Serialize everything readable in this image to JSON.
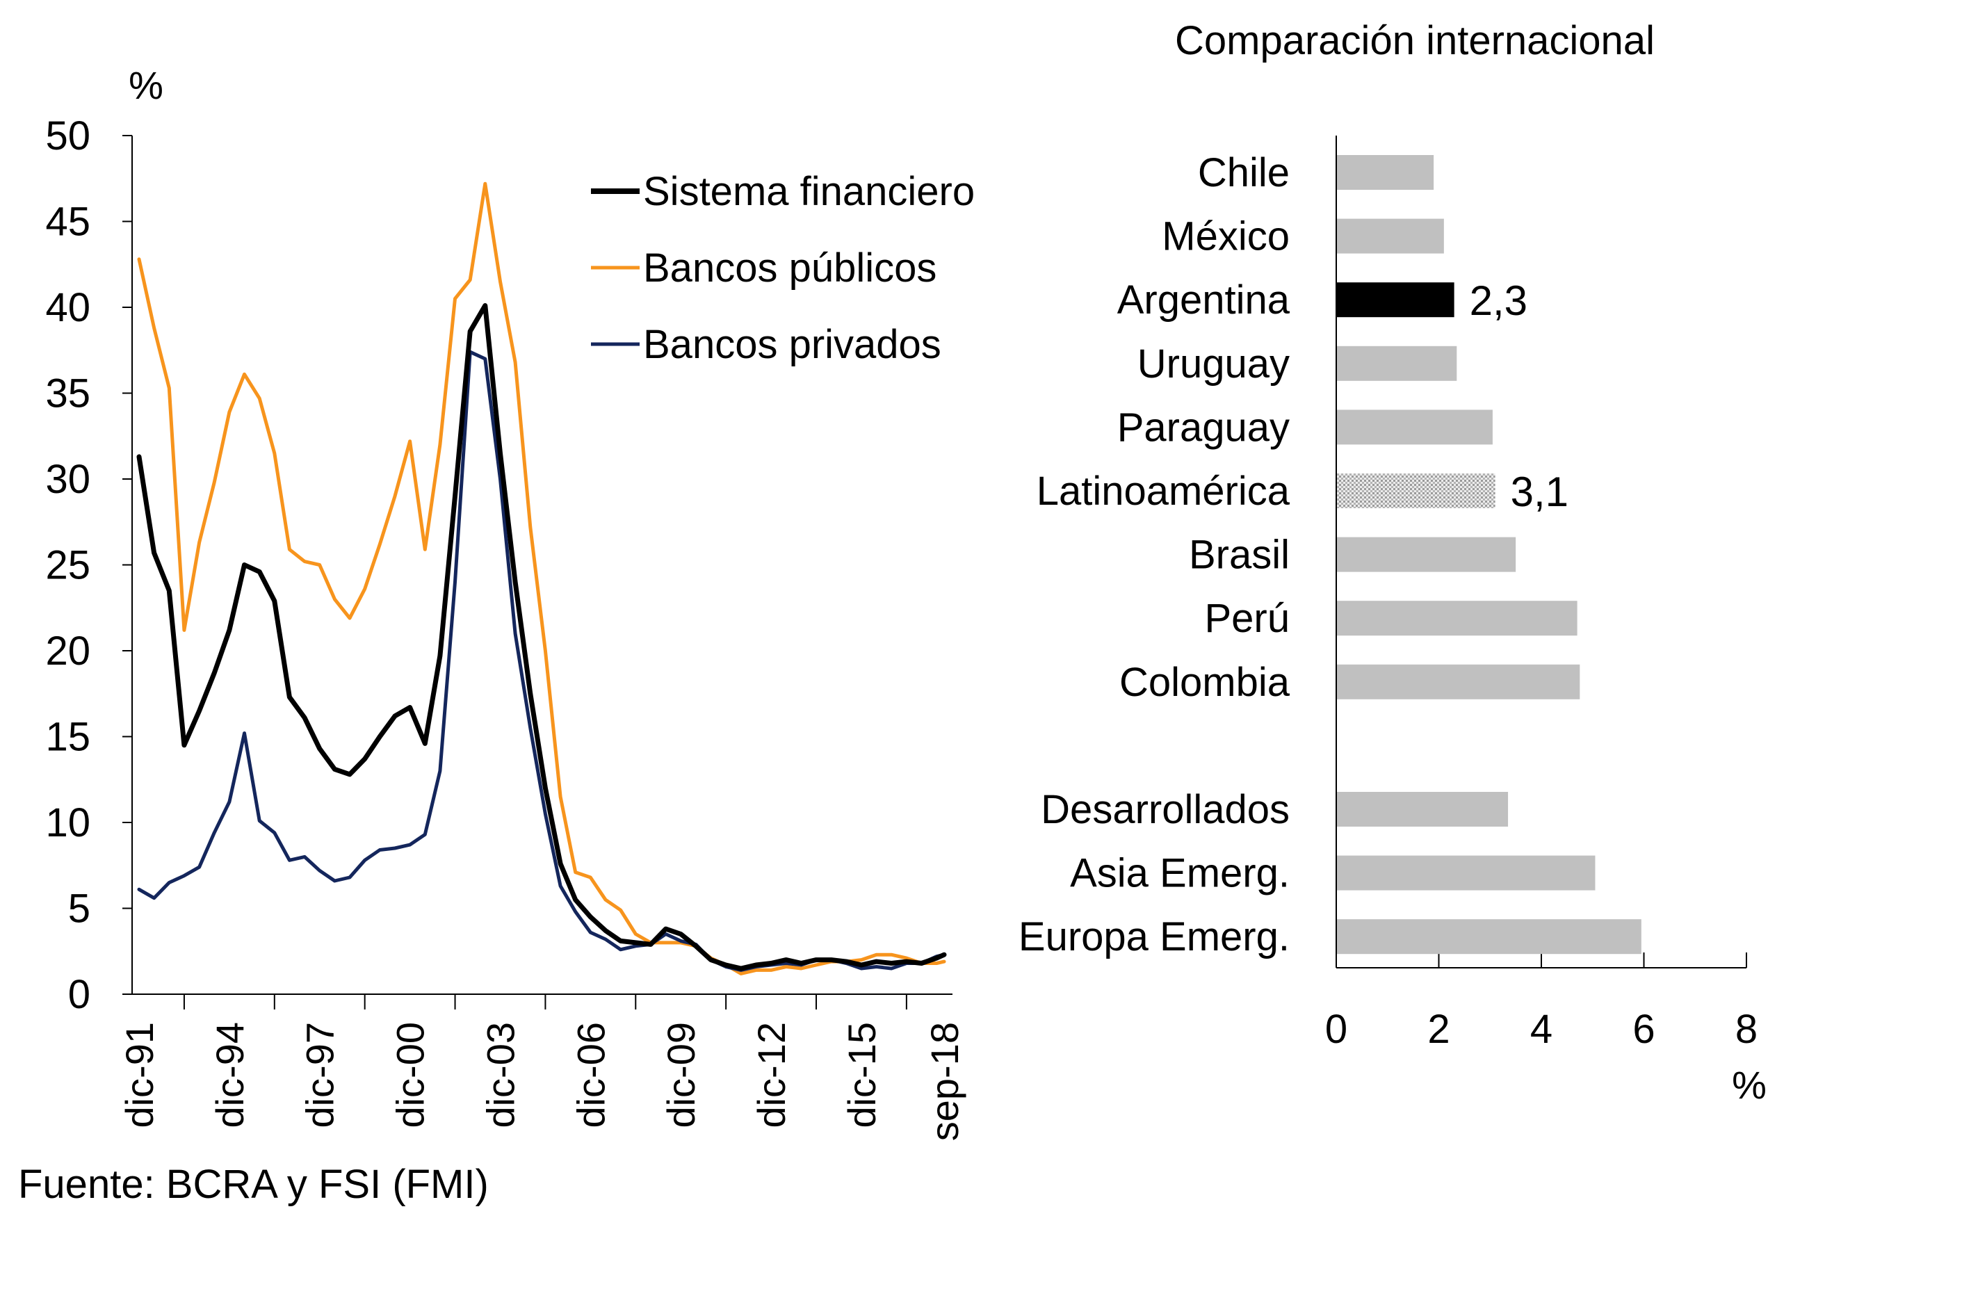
{
  "chart_data": [
    {
      "type": "line",
      "title": "",
      "ylabel": "%",
      "xlabel": "",
      "ylim": [
        0,
        50
      ],
      "yticks": [
        0,
        5,
        10,
        15,
        20,
        25,
        30,
        35,
        40,
        45,
        50
      ],
      "x_tick_labels": [
        "dic-91",
        "dic-94",
        "dic-97",
        "dic-00",
        "dic-03",
        "dic-06",
        "dic-09",
        "dic-12",
        "dic-15",
        "sep-18"
      ],
      "x_tick_positions": [
        0,
        12,
        24,
        36,
        48,
        60,
        72,
        84,
        96,
        107
      ],
      "legend_position": "top-right",
      "x_note": "x is quarterly index: 0 = dic-91, 4 per year, 107 = sep-18",
      "series": [
        {
          "name": "Sistema financiero",
          "color": "#000000",
          "points": [
            [
              0,
              31.3
            ],
            [
              2,
              25.7
            ],
            [
              4,
              23.5
            ],
            [
              6,
              14.5
            ],
            [
              8,
              16.5
            ],
            [
              10,
              18.7
            ],
            [
              12,
              21.2
            ],
            [
              14,
              25.0
            ],
            [
              16,
              24.6
            ],
            [
              18,
              22.9
            ],
            [
              20,
              17.3
            ],
            [
              22,
              16.1
            ],
            [
              24,
              14.3
            ],
            [
              26,
              13.1
            ],
            [
              28,
              12.8
            ],
            [
              30,
              13.7
            ],
            [
              32,
              15.0
            ],
            [
              34,
              16.2
            ],
            [
              36,
              16.7
            ],
            [
              38,
              14.6
            ],
            [
              40,
              19.7
            ],
            [
              42,
              29.0
            ],
            [
              44,
              38.6
            ],
            [
              46,
              40.1
            ],
            [
              48,
              31.5
            ],
            [
              50,
              24.0
            ],
            [
              52,
              17.5
            ],
            [
              54,
              12.0
            ],
            [
              56,
              7.6
            ],
            [
              58,
              5.5
            ],
            [
              60,
              4.5
            ],
            [
              62,
              3.7
            ],
            [
              64,
              3.1
            ],
            [
              66,
              3.0
            ],
            [
              68,
              2.9
            ],
            [
              70,
              3.8
            ],
            [
              72,
              3.5
            ],
            [
              74,
              2.8
            ],
            [
              76,
              2.0
            ],
            [
              78,
              1.7
            ],
            [
              80,
              1.5
            ],
            [
              82,
              1.7
            ],
            [
              84,
              1.8
            ],
            [
              86,
              2.0
            ],
            [
              88,
              1.8
            ],
            [
              90,
              2.0
            ],
            [
              92,
              2.0
            ],
            [
              94,
              1.9
            ],
            [
              96,
              1.7
            ],
            [
              98,
              1.9
            ],
            [
              100,
              1.8
            ],
            [
              102,
              1.9
            ],
            [
              104,
              1.8
            ],
            [
              106,
              2.1
            ],
            [
              107,
              2.3
            ]
          ]
        },
        {
          "name": "Bancos públicos",
          "color": "#f7941d",
          "points": [
            [
              0,
              42.8
            ],
            [
              2,
              38.8
            ],
            [
              4,
              35.3
            ],
            [
              6,
              21.2
            ],
            [
              8,
              26.3
            ],
            [
              10,
              29.8
            ],
            [
              12,
              33.9
            ],
            [
              14,
              36.1
            ],
            [
              16,
              34.7
            ],
            [
              18,
              31.5
            ],
            [
              20,
              25.9
            ],
            [
              22,
              25.2
            ],
            [
              24,
              25.0
            ],
            [
              26,
              23.0
            ],
            [
              28,
              21.9
            ],
            [
              30,
              23.6
            ],
            [
              32,
              26.2
            ],
            [
              34,
              29.0
            ],
            [
              36,
              32.2
            ],
            [
              38,
              25.9
            ],
            [
              40,
              32.0
            ],
            [
              42,
              40.5
            ],
            [
              44,
              41.6
            ],
            [
              46,
              47.2
            ],
            [
              48,
              41.5
            ],
            [
              50,
              36.8
            ],
            [
              52,
              27.2
            ],
            [
              54,
              20.0
            ],
            [
              56,
              11.5
            ],
            [
              58,
              7.1
            ],
            [
              60,
              6.8
            ],
            [
              62,
              5.5
            ],
            [
              64,
              4.9
            ],
            [
              66,
              3.5
            ],
            [
              68,
              3.0
            ],
            [
              70,
              3.0
            ],
            [
              72,
              3.0
            ],
            [
              74,
              2.8
            ],
            [
              76,
              2.1
            ],
            [
              78,
              1.7
            ],
            [
              80,
              1.2
            ],
            [
              82,
              1.4
            ],
            [
              84,
              1.4
            ],
            [
              86,
              1.6
            ],
            [
              88,
              1.5
            ],
            [
              90,
              1.7
            ],
            [
              92,
              1.9
            ],
            [
              94,
              1.9
            ],
            [
              96,
              2.0
            ],
            [
              98,
              2.3
            ],
            [
              100,
              2.3
            ],
            [
              102,
              2.1
            ],
            [
              104,
              1.8
            ],
            [
              106,
              1.8
            ],
            [
              107,
              1.9
            ]
          ]
        },
        {
          "name": "Bancos privados",
          "color": "#14265c",
          "points": [
            [
              0,
              6.1
            ],
            [
              2,
              5.6
            ],
            [
              4,
              6.5
            ],
            [
              6,
              6.9
            ],
            [
              8,
              7.4
            ],
            [
              10,
              9.4
            ],
            [
              12,
              11.2
            ],
            [
              14,
              15.2
            ],
            [
              16,
              10.1
            ],
            [
              18,
              9.4
            ],
            [
              20,
              7.8
            ],
            [
              22,
              8.0
            ],
            [
              24,
              7.2
            ],
            [
              26,
              6.6
            ],
            [
              28,
              6.8
            ],
            [
              30,
              7.8
            ],
            [
              32,
              8.4
            ],
            [
              34,
              8.5
            ],
            [
              36,
              8.7
            ],
            [
              38,
              9.3
            ],
            [
              40,
              13.0
            ],
            [
              42,
              24.0
            ],
            [
              44,
              37.4
            ],
            [
              46,
              37.0
            ],
            [
              48,
              30.0
            ],
            [
              50,
              21.0
            ],
            [
              52,
              15.5
            ],
            [
              54,
              10.5
            ],
            [
              56,
              6.3
            ],
            [
              58,
              4.8
            ],
            [
              60,
              3.6
            ],
            [
              62,
              3.2
            ],
            [
              64,
              2.6
            ],
            [
              66,
              2.8
            ],
            [
              68,
              2.9
            ],
            [
              70,
              3.5
            ],
            [
              72,
              3.1
            ],
            [
              74,
              2.9
            ],
            [
              76,
              2.0
            ],
            [
              78,
              1.6
            ],
            [
              80,
              1.4
            ],
            [
              82,
              1.6
            ],
            [
              84,
              1.7
            ],
            [
              86,
              1.8
            ],
            [
              88,
              1.7
            ],
            [
              90,
              2.0
            ],
            [
              92,
              2.0
            ],
            [
              94,
              1.8
            ],
            [
              96,
              1.5
            ],
            [
              98,
              1.6
            ],
            [
              100,
              1.5
            ],
            [
              102,
              1.8
            ],
            [
              104,
              1.8
            ],
            [
              106,
              2.2
            ],
            [
              107,
              2.3
            ]
          ]
        }
      ]
    },
    {
      "type": "bar",
      "orientation": "horizontal",
      "title": "Comparación internacional",
      "xlabel": "%",
      "xlim": [
        0,
        8
      ],
      "xticks": [
        0,
        2,
        4,
        6,
        8
      ],
      "categories": [
        "Chile",
        "México",
        "Argentina",
        "Uruguay",
        "Paraguay",
        "Latinoamérica",
        "Brasil",
        "Perú",
        "Colombia",
        "",
        "Desarrollados",
        "Asia Emerg.",
        "Europa Emerg."
      ],
      "values": [
        1.9,
        2.1,
        2.3,
        2.35,
        3.05,
        3.1,
        3.5,
        4.7,
        4.75,
        null,
        3.35,
        5.05,
        5.95
      ],
      "bar_colors": [
        "#c0c0c0",
        "#c0c0c0",
        "#000000",
        "#c0c0c0",
        "#c0c0c0",
        "pattern-dotted",
        "#c0c0c0",
        "#c0c0c0",
        "#c0c0c0",
        "none",
        "#c0c0c0",
        "#c0c0c0",
        "#c0c0c0"
      ],
      "data_labels": [
        {
          "category": "Argentina",
          "text": "2,3"
        },
        {
          "category": "Latinoamérica",
          "text": "3,1"
        }
      ]
    }
  ],
  "source": "Fuente: BCRA y FSI (FMI)"
}
